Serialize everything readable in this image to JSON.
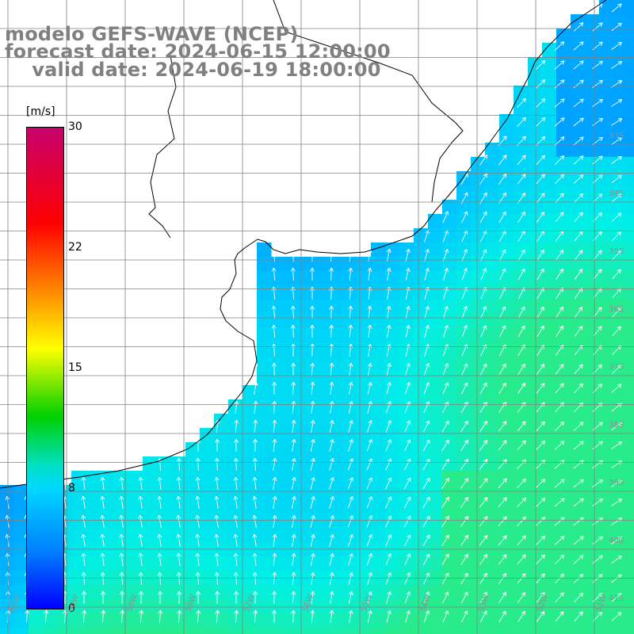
{
  "header": {
    "line1": "modelo GEFS-WAVE (NCEP)",
    "line2": "forecast date: 2024-06-15 12:00:00",
    "line3": "    valid date: 2024-06-19 18:00:00"
  },
  "colorbar": {
    "unit": "[m/s]",
    "ticks": [
      "30",
      "22",
      "15",
      "8",
      "0"
    ],
    "colors": [
      "#c8006e",
      "#ff0000",
      "#ff8000",
      "#ffff00",
      "#00d000",
      "#00e0c0",
      "#00d8ff",
      "#0080ff",
      "#0000ff"
    ]
  },
  "lat_labels": [
    "33S",
    "34S",
    "35S",
    "36S",
    "37S",
    "38S",
    "39S",
    "40S",
    "41S"
  ],
  "lon_labels": [
    "61W",
    "60W",
    "59W",
    "58W",
    "57W",
    "56W",
    "55W",
    "54W",
    "53W",
    "52W",
    "51W"
  ],
  "colors": {
    "land": "#ffffff",
    "grid": "#808080",
    "coast": "#000000",
    "arrow": "#ffffff"
  }
}
